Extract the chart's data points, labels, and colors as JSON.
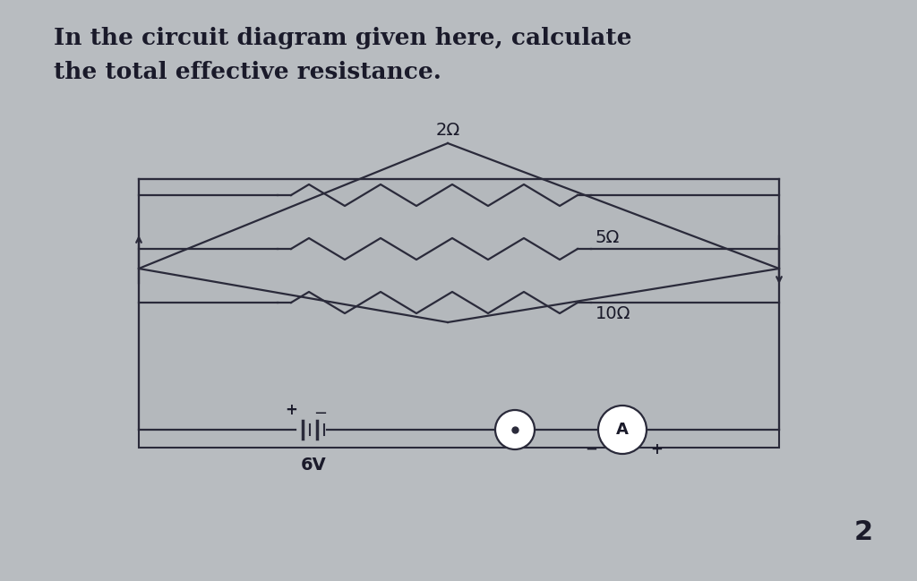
{
  "title_line1": "In the circuit diagram given here, calculate",
  "title_line2": "the total effective resistance.",
  "bg_color": "#b8bcc0",
  "box_color": "#b0b4b8",
  "resistor_labels": [
    "2Ω",
    "5Ω",
    "10Ω"
  ],
  "battery_label": "6V",
  "ammeter_label": "A",
  "page_number": "2",
  "line_color": "#2a2a3a",
  "text_color": "#1a1a2a",
  "title_fontsize": 19,
  "label_fontsize": 14,
  "lw": 1.6
}
